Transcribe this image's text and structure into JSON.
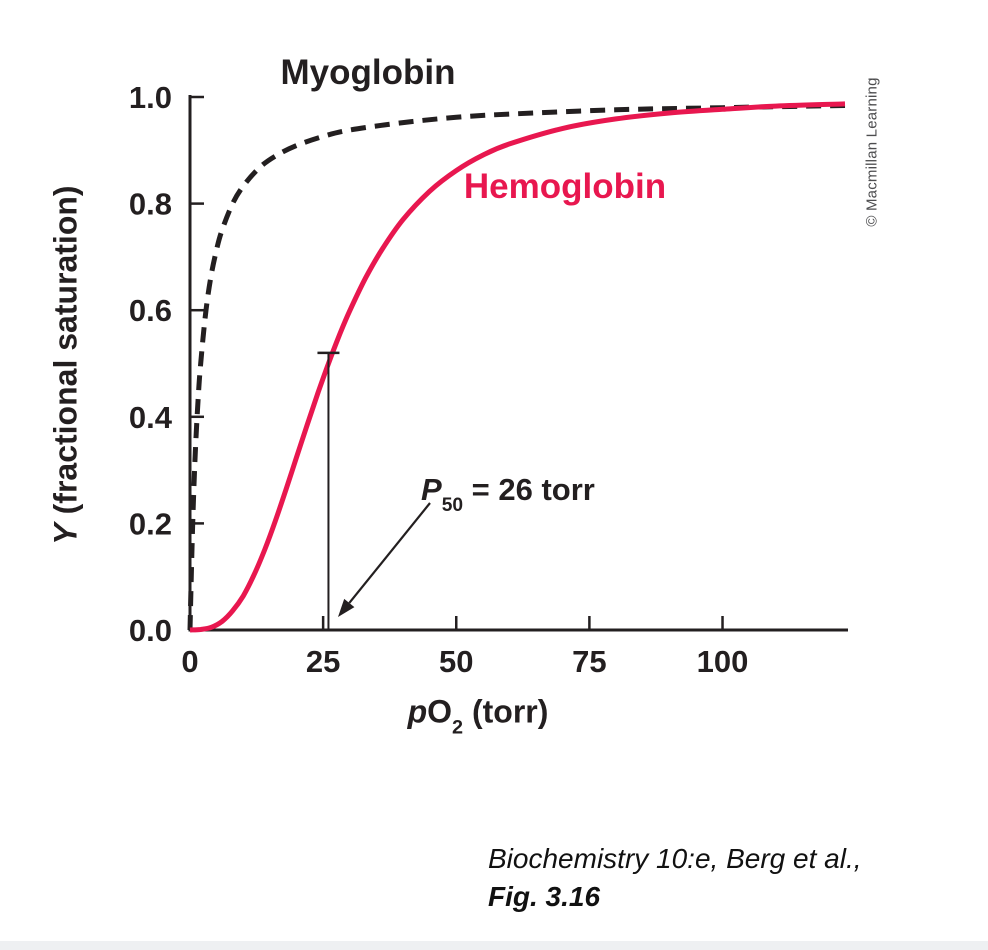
{
  "figure": {
    "labels": {
      "myoglobin": "Myoglobin",
      "hemoglobin": "Hemoglobin",
      "p50_p": "P",
      "p50_sub": "50",
      "p50_rest": " = 26 torr",
      "x_p": "p",
      "x_O": "O",
      "x_sub": "2",
      "x_rest": " (torr)",
      "y_Y": "Y",
      "y_rest": " (fractional saturation)",
      "copyright": "© Macmillan Learning",
      "caption_line1": "Biochemistry 10:e, Berg et al.,",
      "caption_line2": "Fig. 3.16"
    },
    "colors": {
      "ink": "#231f20",
      "hemoglobin_red": "#e8174f",
      "copyright_gray": "#4d4d4f",
      "footer_strip": "#eef0f2"
    }
  },
  "chart_data": {
    "type": "line",
    "title": "",
    "xlabel": "pO2 (torr)",
    "ylabel": "Y (fractional saturation)",
    "xlim": [
      0,
      123
    ],
    "ylim": [
      0,
      1.0
    ],
    "grid": false,
    "legend": "inline-labels",
    "x_tick_values": [
      0,
      25,
      50,
      75,
      100
    ],
    "x_tick_labels": [
      "0",
      "25",
      "50",
      "75",
      "100"
    ],
    "y_tick_values": [
      0,
      0.2,
      0.4,
      0.6,
      0.8,
      1.0
    ],
    "y_tick_labels": [
      "0.0",
      "0.2",
      "0.4",
      "0.6",
      "0.8",
      "1.0"
    ],
    "annotations": [
      {
        "text": "P50 = 26 torr",
        "arrow_to_x": 26,
        "arrow_to_y": 0
      }
    ],
    "p50_marker": {
      "x": 26,
      "y_top": 0.52
    },
    "series": [
      {
        "name": "Myoglobin",
        "style": "dashed",
        "color": "#231f20",
        "points": [
          [
            0,
            0
          ],
          [
            0.5,
            0.2
          ],
          [
            1,
            0.333
          ],
          [
            1.5,
            0.429
          ],
          [
            2,
            0.5
          ],
          [
            3,
            0.6
          ],
          [
            4,
            0.667
          ],
          [
            5,
            0.714
          ],
          [
            6,
            0.75
          ],
          [
            8,
            0.8
          ],
          [
            10,
            0.833
          ],
          [
            13,
            0.867
          ],
          [
            16,
            0.889
          ],
          [
            20,
            0.909
          ],
          [
            25,
            0.926
          ],
          [
            30,
            0.938
          ],
          [
            40,
            0.952
          ],
          [
            50,
            0.962
          ],
          [
            60,
            0.968
          ],
          [
            80,
            0.976
          ],
          [
            100,
            0.98
          ],
          [
            123,
            0.984
          ]
        ]
      },
      {
        "name": "Hemoglobin",
        "style": "solid",
        "color": "#e8174f",
        "points": [
          [
            0,
            0
          ],
          [
            2,
            0.001
          ],
          [
            4,
            0.005
          ],
          [
            6,
            0.016
          ],
          [
            8,
            0.036
          ],
          [
            10,
            0.064
          ],
          [
            12,
            0.103
          ],
          [
            14,
            0.15
          ],
          [
            16,
            0.204
          ],
          [
            18,
            0.263
          ],
          [
            20,
            0.324
          ],
          [
            22,
            0.385
          ],
          [
            24,
            0.444
          ],
          [
            26,
            0.5
          ],
          [
            28,
            0.552
          ],
          [
            30,
            0.599
          ],
          [
            33,
            0.661
          ],
          [
            36,
            0.713
          ],
          [
            40,
            0.77
          ],
          [
            45,
            0.823
          ],
          [
            50,
            0.862
          ],
          [
            55,
            0.891
          ],
          [
            60,
            0.912
          ],
          [
            70,
            0.941
          ],
          [
            80,
            0.959
          ],
          [
            90,
            0.97
          ],
          [
            100,
            0.977
          ],
          [
            110,
            0.983
          ],
          [
            123,
            0.987
          ]
        ]
      }
    ]
  }
}
